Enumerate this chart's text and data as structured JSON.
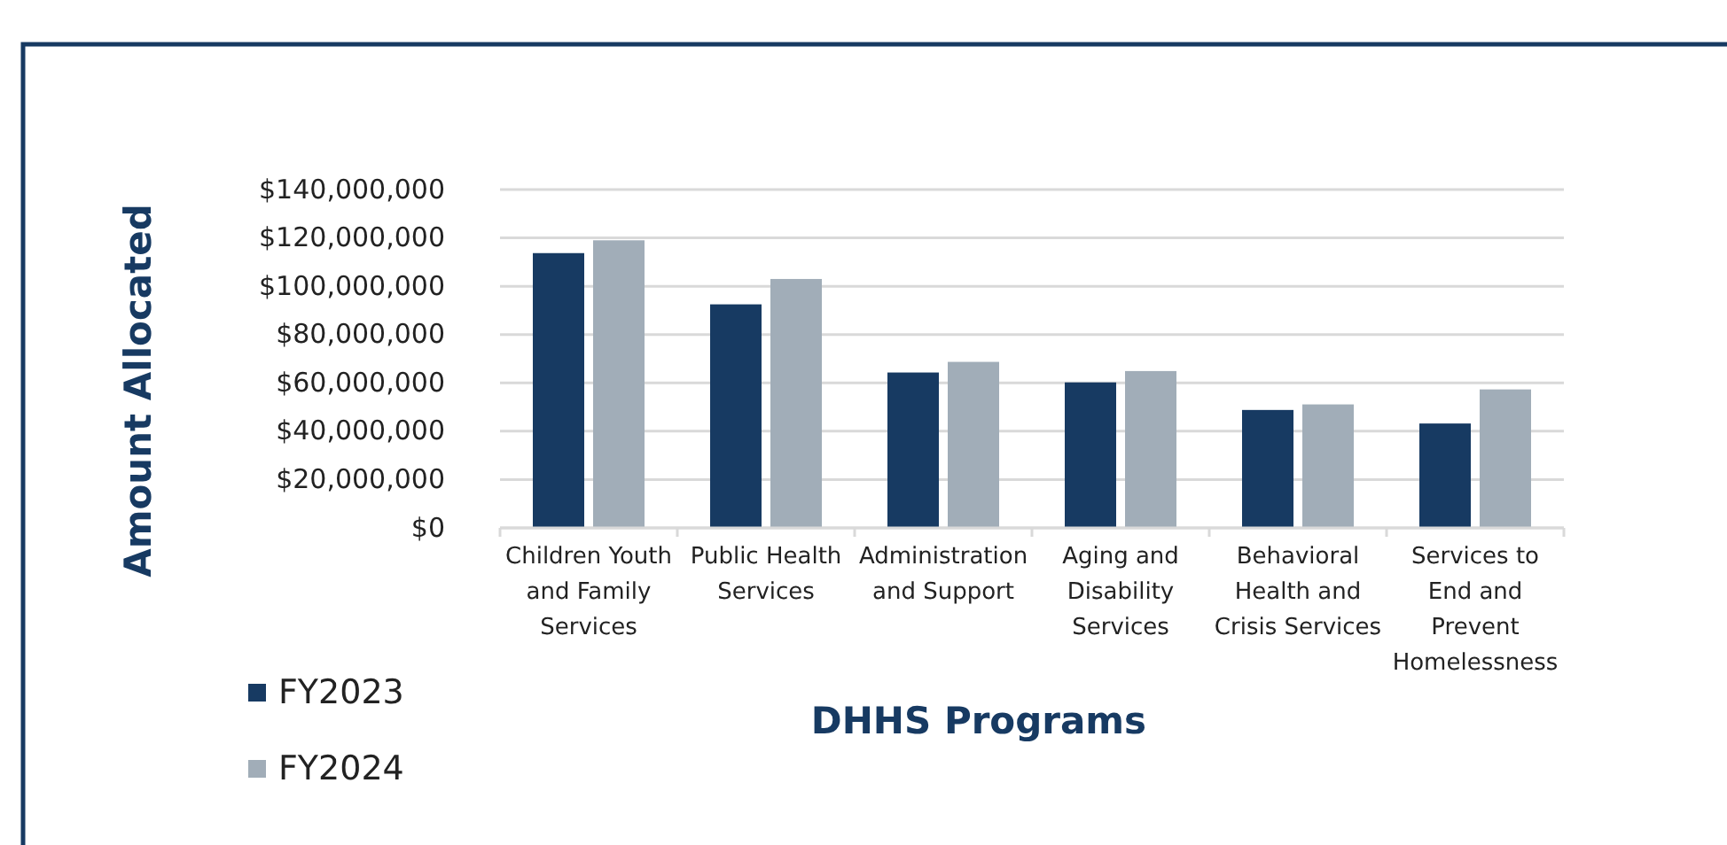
{
  "chart_data": {
    "type": "bar",
    "xlabel": "DHHS Programs",
    "ylabel": "Amount Allocated",
    "categories": [
      "Children Youth and Family Services",
      "Public Health Services",
      "Administration and Support",
      "Aging and Disability Services",
      "Behavioral Health and Crisis Services",
      "Services to End and Prevent Homelessness"
    ],
    "series": [
      {
        "name": "FY2023",
        "color": "#173a62",
        "values": [
          113700000,
          92500000,
          64300000,
          60200000,
          48800000,
          43200000
        ]
      },
      {
        "name": "FY2024",
        "color": "#a1adb8",
        "values": [
          119000000,
          103000000,
          68700000,
          64900000,
          51100000,
          57300000
        ]
      }
    ],
    "ylim": [
      0,
      140000000
    ],
    "yticks": [
      {
        "value": 0,
        "label": "$0"
      },
      {
        "value": 20000000,
        "label": "$20,000,000"
      },
      {
        "value": 40000000,
        "label": "$40,000,000"
      },
      {
        "value": 60000000,
        "label": "$60,000,000"
      },
      {
        "value": 80000000,
        "label": "$80,000,000"
      },
      {
        "value": 100000000,
        "label": "$100,000,000"
      },
      {
        "value": 120000000,
        "label": "$120,000,000"
      },
      {
        "value": 140000000,
        "label": "$140,000,000"
      }
    ],
    "grid": "y",
    "legend": "bottom left"
  }
}
